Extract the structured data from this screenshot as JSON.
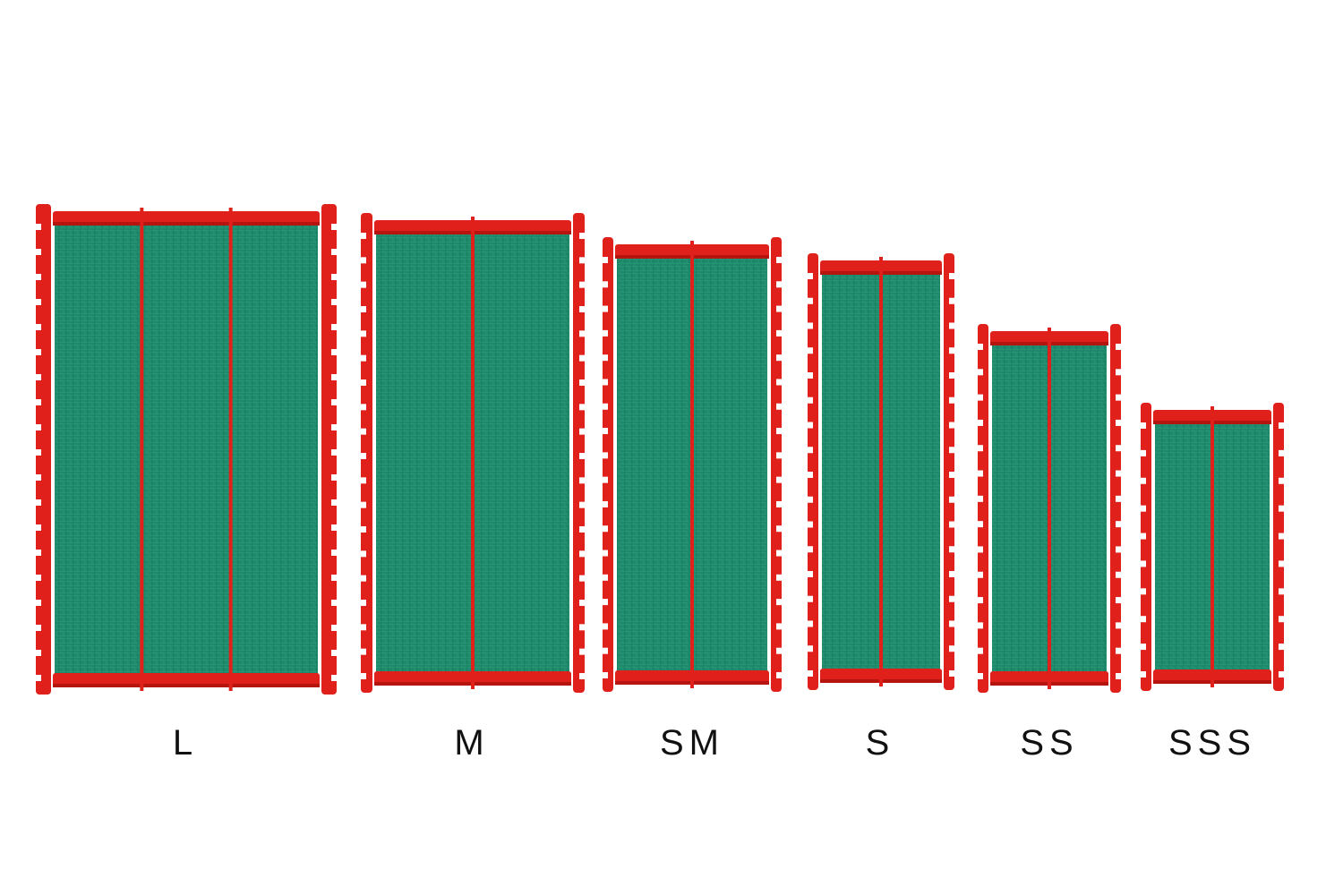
{
  "products": [
    {
      "size": "L",
      "sections": 3
    },
    {
      "size": "M",
      "sections": 2
    },
    {
      "size": "SM",
      "sections": 2
    },
    {
      "size": "S",
      "sections": 2
    },
    {
      "size": "SS",
      "sections": 2
    },
    {
      "size": "SSS",
      "sections": 2
    }
  ],
  "colors": {
    "frame": "#e0201a",
    "frame_dark": "#b5140f",
    "pad": "#1f8a6b",
    "pad_dark": "#157258",
    "background": "#ffffff"
  }
}
